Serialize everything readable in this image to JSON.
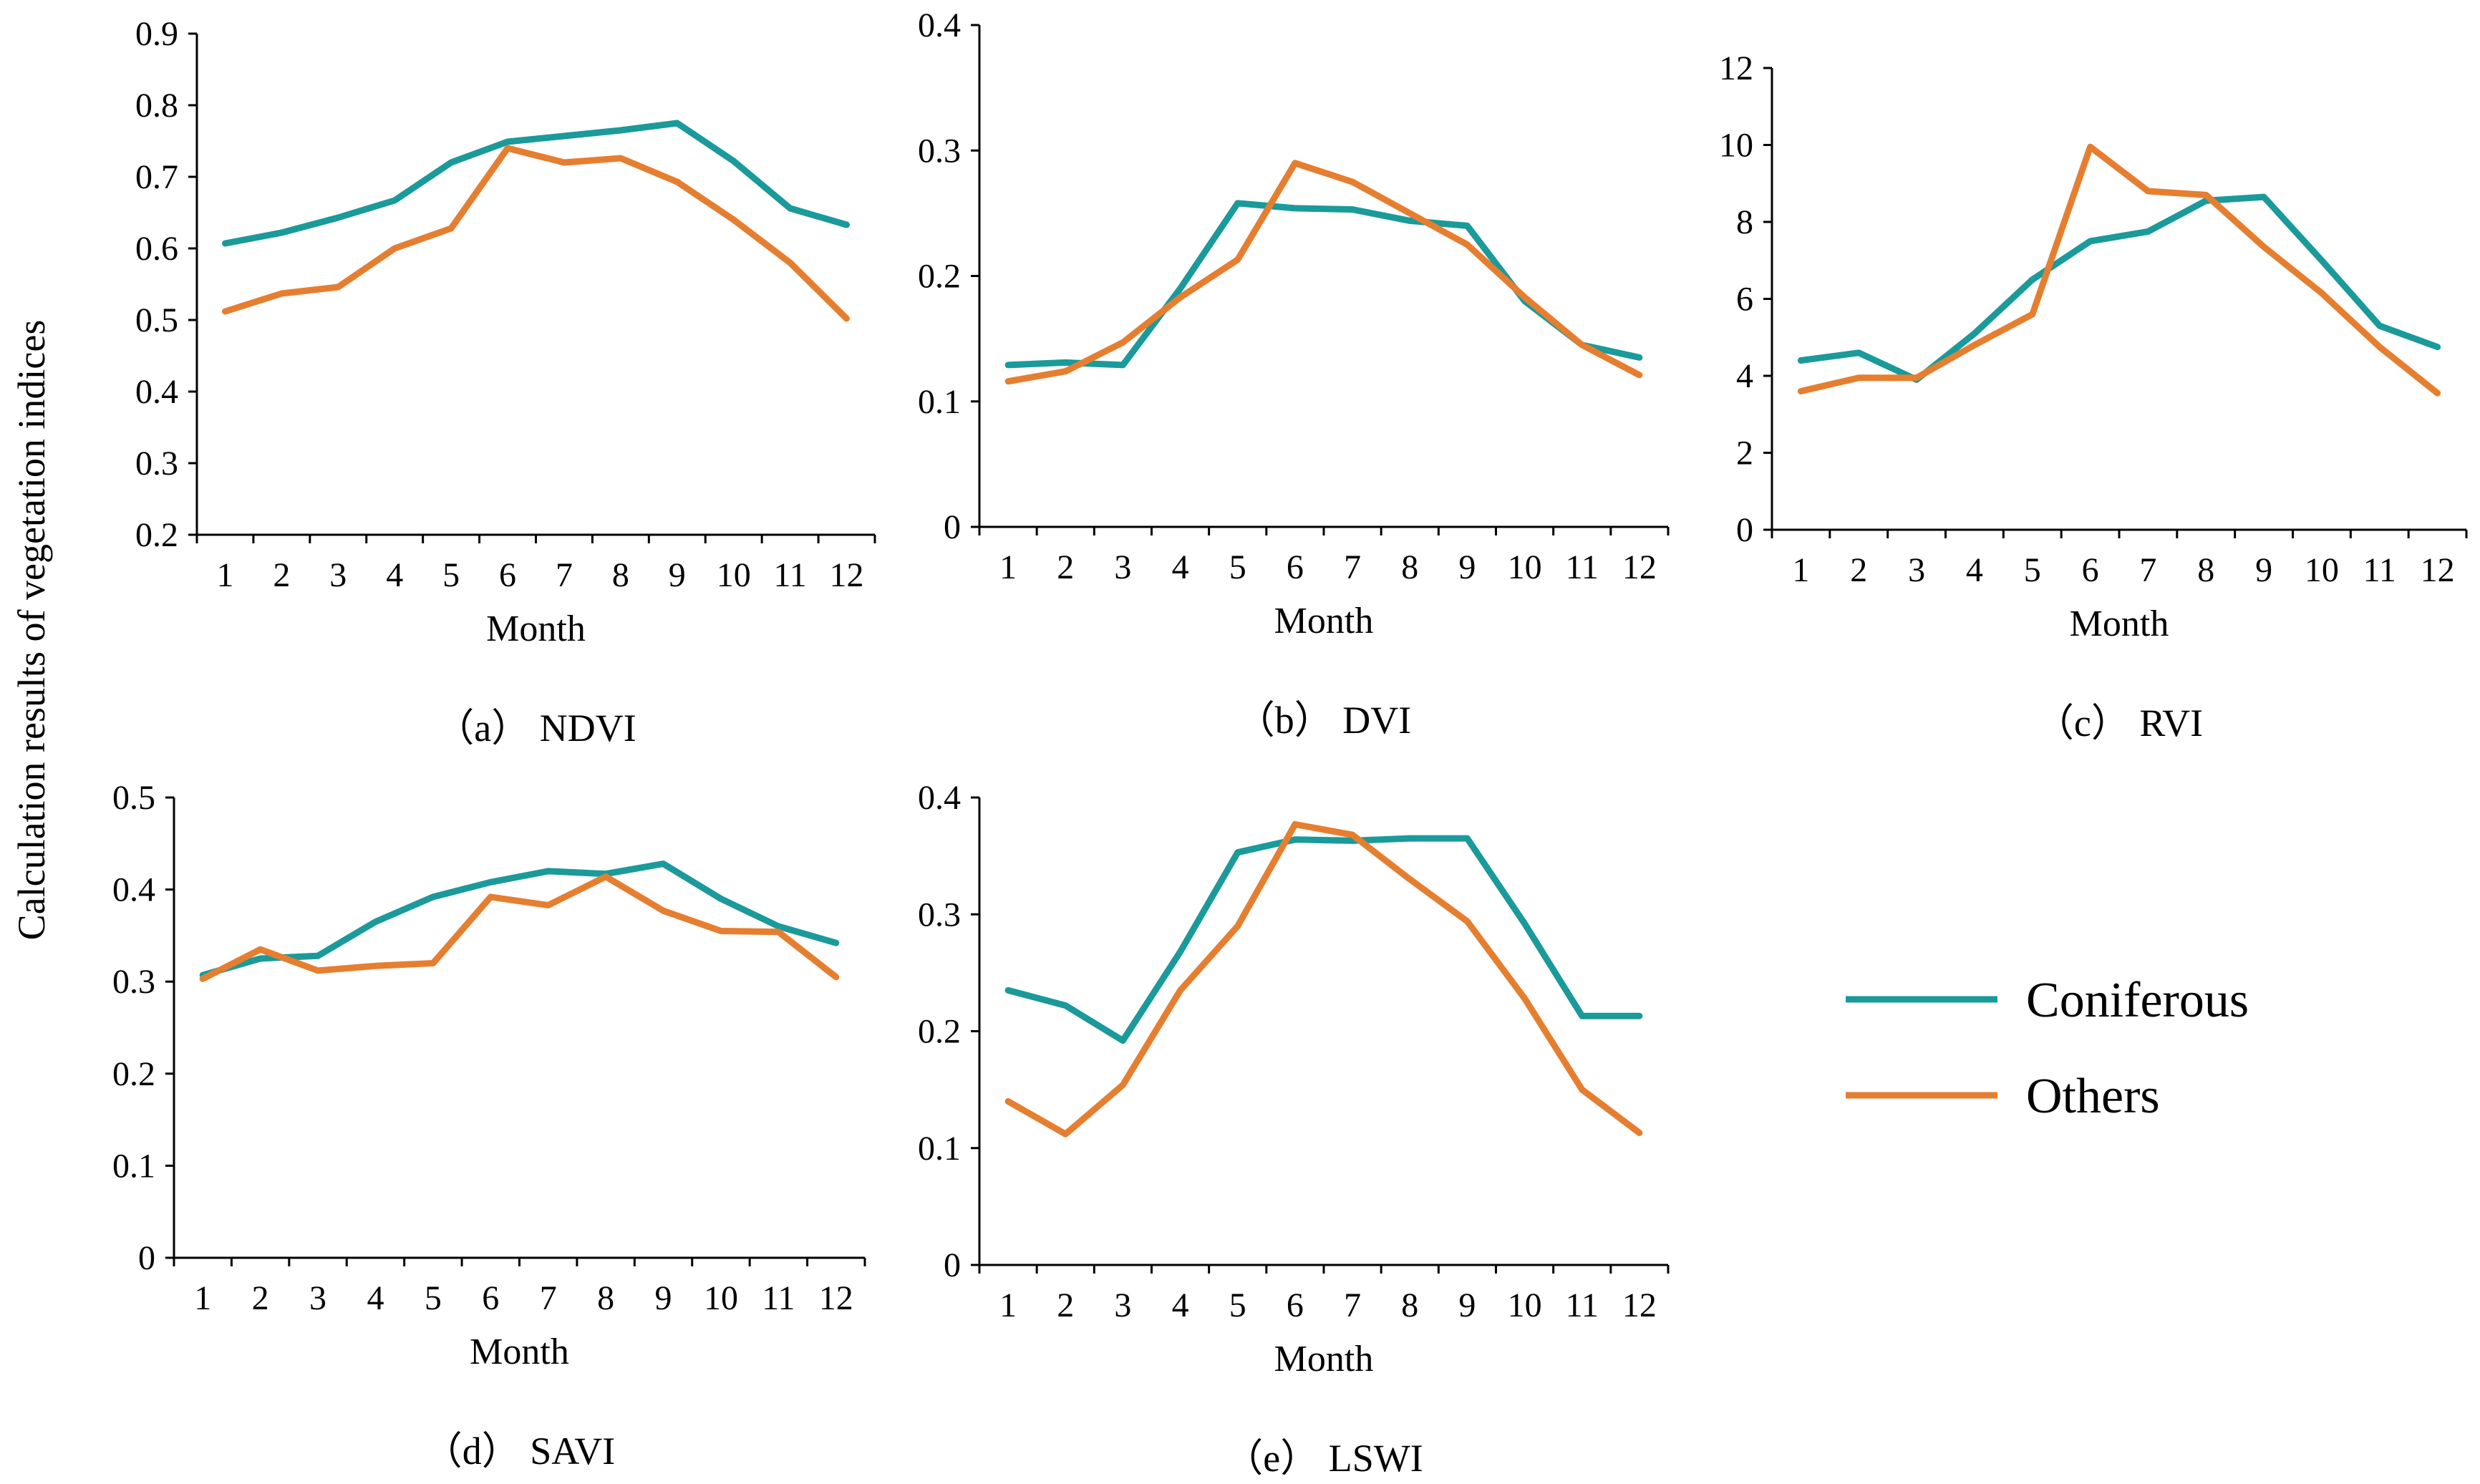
{
  "figure": {
    "y_axis_title": "Calculation results of vegetation indices"
  },
  "colors": {
    "coniferous": "#1a9a9a",
    "others": "#e67e30"
  },
  "legend": [
    {
      "name": "Coniferous",
      "color": "#1a9a9a"
    },
    {
      "name": "Others",
      "color": "#e67e30"
    }
  ],
  "chart_data": [
    {
      "id": "ndvi",
      "type": "line",
      "caption": "（a） NDVI",
      "xlabel": "Month",
      "categories": [
        "1",
        "2",
        "3",
        "4",
        "5",
        "6",
        "7",
        "8",
        "9",
        "10",
        "11",
        "12"
      ],
      "ylim": [
        0.2,
        0.9
      ],
      "yticks": [
        0.2,
        0.3,
        0.4,
        0.5,
        0.6,
        0.7,
        0.8,
        0.9
      ],
      "ytick_labels": [
        "0.2",
        "0.3",
        "0.4",
        "0.5",
        "0.6",
        "0.7",
        "0.8",
        "0.9"
      ],
      "series": [
        {
          "name": "Coniferous",
          "color": "#1a9a9a",
          "values": [
            0.607,
            0.622,
            0.643,
            0.667,
            0.72,
            0.749,
            0.757,
            0.765,
            0.775,
            0.722,
            0.656,
            0.633
          ]
        },
        {
          "name": "Others",
          "color": "#e67e30",
          "values": [
            0.512,
            0.537,
            0.546,
            0.6,
            0.628,
            0.74,
            0.72,
            0.726,
            0.693,
            0.64,
            0.58,
            0.502
          ]
        }
      ]
    },
    {
      "id": "dvi",
      "type": "line",
      "caption": "（b） DVI",
      "xlabel": "Month",
      "categories": [
        "1",
        "2",
        "3",
        "4",
        "5",
        "6",
        "7",
        "8",
        "9",
        "10",
        "11",
        "12"
      ],
      "ylim": [
        0,
        0.4
      ],
      "yticks": [
        0,
        0.1,
        0.2,
        0.3,
        0.4
      ],
      "ytick_labels": [
        "0",
        "0.1",
        "0.2",
        "0.3",
        "0.4"
      ],
      "series": [
        {
          "name": "Coniferous",
          "color": "#1a9a9a",
          "values": [
            0.129,
            0.131,
            0.129,
            0.19,
            0.258,
            0.254,
            0.253,
            0.244,
            0.24,
            0.18,
            0.145,
            0.135
          ]
        },
        {
          "name": "Others",
          "color": "#e67e30",
          "values": [
            0.116,
            0.124,
            0.147,
            0.183,
            0.213,
            0.29,
            0.275,
            0.25,
            0.225,
            0.183,
            0.145,
            0.121
          ]
        }
      ]
    },
    {
      "id": "rvi",
      "type": "line",
      "caption": "（c） RVI",
      "xlabel": "Month",
      "categories": [
        "1",
        "2",
        "3",
        "4",
        "5",
        "6",
        "7",
        "8",
        "9",
        "10",
        "11",
        "12"
      ],
      "ylim": [
        0,
        12
      ],
      "yticks": [
        0,
        2,
        4,
        6,
        8,
        10,
        12
      ],
      "ytick_labels": [
        "0",
        "2",
        "4",
        "6",
        "8",
        "10",
        "12"
      ],
      "series": [
        {
          "name": "Coniferous",
          "color": "#1a9a9a",
          "values": [
            4.4,
            4.6,
            3.9,
            5.1,
            6.5,
            7.5,
            7.75,
            8.55,
            8.65,
            7.0,
            5.3,
            4.75
          ]
        },
        {
          "name": "Others",
          "color": "#e67e30",
          "values": [
            3.6,
            3.95,
            3.95,
            4.8,
            5.6,
            9.95,
            8.8,
            8.7,
            7.35,
            6.15,
            4.75,
            3.55
          ]
        }
      ]
    },
    {
      "id": "savi",
      "type": "line",
      "caption": "（d） SAVI",
      "xlabel": "Month",
      "categories": [
        "1",
        "2",
        "3",
        "4",
        "5",
        "6",
        "7",
        "8",
        "9",
        "10",
        "11",
        "12"
      ],
      "ylim": [
        0,
        0.5
      ],
      "yticks": [
        0,
        0.1,
        0.2,
        0.3,
        0.4,
        0.5
      ],
      "ytick_labels": [
        "0",
        "0.1",
        "0.2",
        "0.3",
        "0.4",
        "0.5"
      ],
      "series": [
        {
          "name": "Coniferous",
          "color": "#1a9a9a",
          "values": [
            0.307,
            0.325,
            0.328,
            0.365,
            0.392,
            0.408,
            0.42,
            0.417,
            0.428,
            0.39,
            0.36,
            0.342
          ]
        },
        {
          "name": "Others",
          "color": "#e67e30",
          "values": [
            0.303,
            0.335,
            0.312,
            0.317,
            0.32,
            0.392,
            0.383,
            0.414,
            0.377,
            0.355,
            0.354,
            0.305
          ]
        }
      ]
    },
    {
      "id": "lswi",
      "type": "line",
      "caption": "（e） LSWI",
      "xlabel": "Month",
      "categories": [
        "1",
        "2",
        "3",
        "4",
        "5",
        "6",
        "7",
        "8",
        "9",
        "10",
        "11",
        "12"
      ],
      "ylim": [
        0,
        0.4
      ],
      "yticks": [
        0,
        0.1,
        0.2,
        0.3,
        0.4
      ],
      "ytick_labels": [
        "0",
        "0.1",
        "0.2",
        "0.3",
        "0.4"
      ],
      "series": [
        {
          "name": "Coniferous",
          "color": "#1a9a9a",
          "values": [
            0.235,
            0.222,
            0.192,
            0.268,
            0.353,
            0.364,
            0.363,
            0.365,
            0.365,
            0.292,
            0.213,
            0.213
          ]
        },
        {
          "name": "Others",
          "color": "#e67e30",
          "values": [
            0.14,
            0.112,
            0.154,
            0.235,
            0.29,
            0.377,
            0.368,
            0.33,
            0.294,
            0.228,
            0.15,
            0.113
          ]
        }
      ]
    }
  ]
}
